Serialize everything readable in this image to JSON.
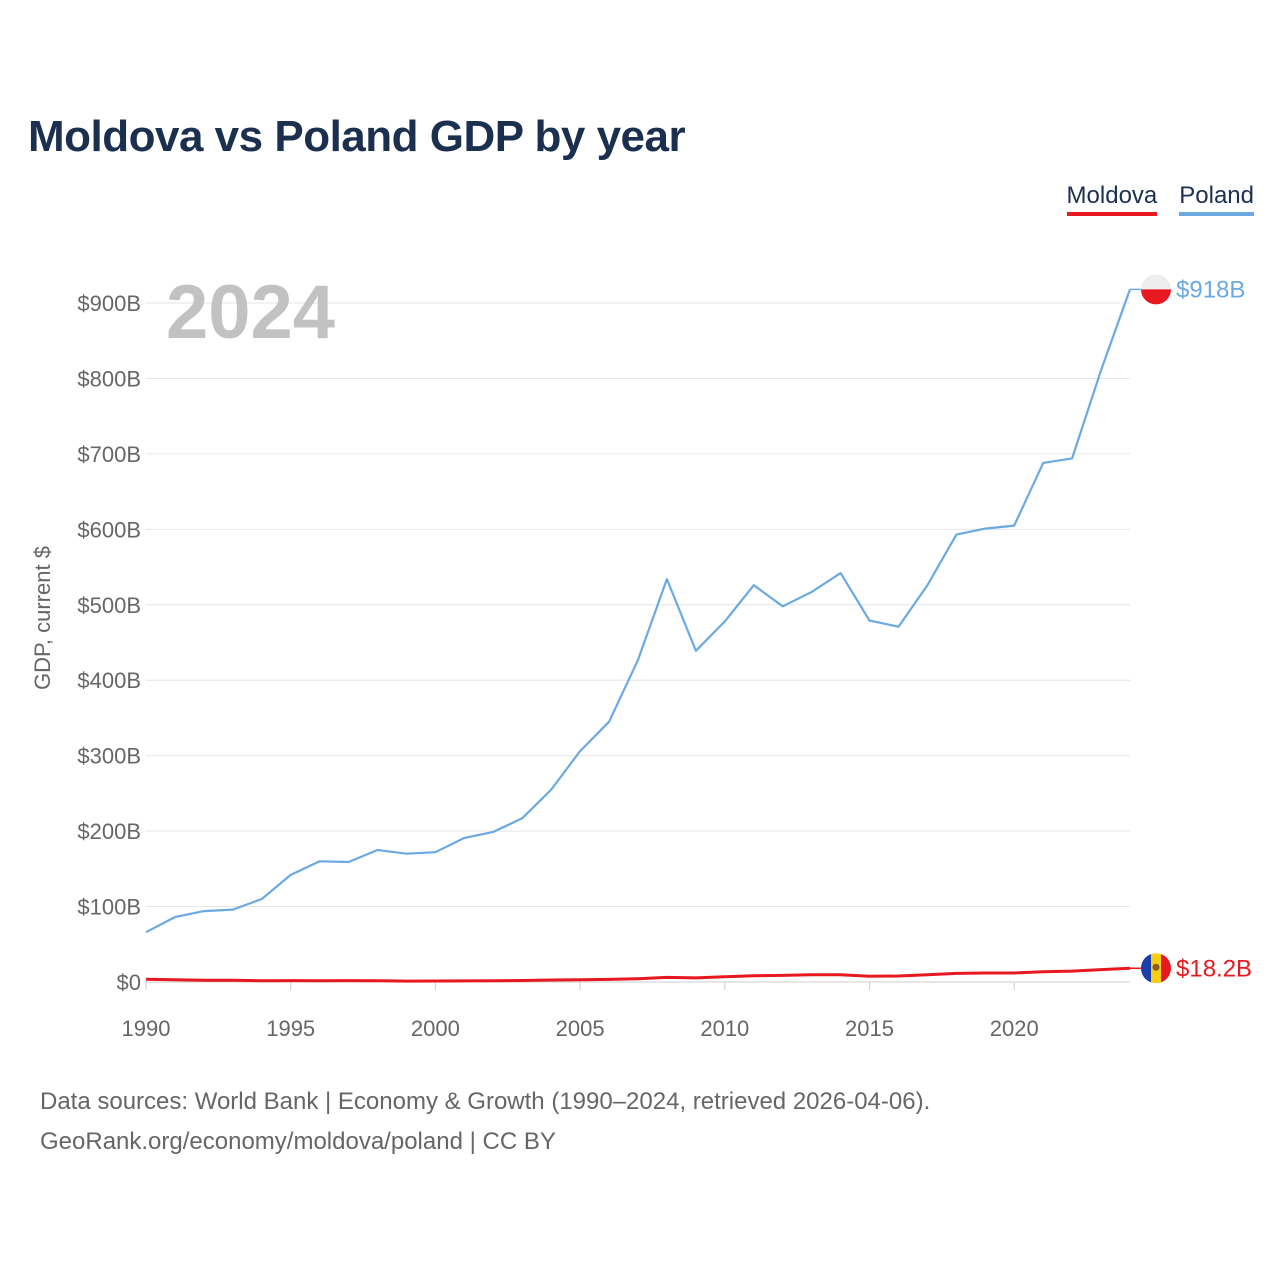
{
  "title": "Moldova vs Poland GDP by year",
  "legend": [
    {
      "name": "Moldova",
      "color": "#e8181f"
    },
    {
      "name": "Poland",
      "color": "#6aa9e4"
    }
  ],
  "year_watermark": "2024",
  "source_line1": "Data sources: World Bank | Economy & Growth (1990–2024, retrieved 2026-04-06).",
  "source_line2": "GeoRank.org/economy/moldova/poland | CC BY",
  "chart_data": {
    "type": "line",
    "title": "Moldova vs Poland GDP by year",
    "xlabel": "",
    "ylabel": "GDP, current $",
    "x": [
      1990,
      1991,
      1992,
      1993,
      1994,
      1995,
      1996,
      1997,
      1998,
      1999,
      2000,
      2001,
      2002,
      2003,
      2004,
      2005,
      2006,
      2007,
      2008,
      2009,
      2010,
      2011,
      2012,
      2013,
      2014,
      2015,
      2016,
      2017,
      2018,
      2019,
      2020,
      2021,
      2022,
      2023,
      2024
    ],
    "xlim": [
      1990,
      2024
    ],
    "ylim": [
      0,
      900
    ],
    "x_ticks": [
      1990,
      1995,
      2000,
      2005,
      2010,
      2015,
      2020
    ],
    "x_tick_labels": [
      "1990",
      "1995",
      "2000",
      "2005",
      "2010",
      "2015",
      "2020"
    ],
    "y_ticks": [
      0,
      100,
      200,
      300,
      400,
      500,
      600,
      700,
      800,
      900
    ],
    "y_tick_labels": [
      "$0",
      "$100B",
      "$200B",
      "$300B",
      "$400B",
      "$500B",
      "$600B",
      "$700B",
      "$800B",
      "$900B"
    ],
    "grid": true,
    "units": "billion USD",
    "series": [
      {
        "name": "Moldova",
        "color": "#e8181f",
        "end_label": "$18.2B",
        "values": [
          3.6,
          3.1,
          2.3,
          2.2,
          1.7,
          1.8,
          1.7,
          1.9,
          1.7,
          1.2,
          1.3,
          1.5,
          1.7,
          2.0,
          2.6,
          3.0,
          3.4,
          4.4,
          6.1,
          5.4,
          7.0,
          8.4,
          8.7,
          9.5,
          9.5,
          7.7,
          8.0,
          9.7,
          11.4,
          11.9,
          11.9,
          13.7,
          14.5,
          16.5,
          18.2
        ]
      },
      {
        "name": "Poland",
        "color": "#6aa9e4",
        "end_label": "$918B",
        "values": [
          66,
          86,
          94,
          96,
          110,
          142,
          160,
          159,
          175,
          170,
          172,
          191,
          199,
          217,
          255,
          306,
          345,
          427,
          534,
          439,
          478,
          526,
          498,
          517,
          542,
          479,
          471,
          526,
          593,
          601,
          605,
          688,
          694,
          811,
          918
        ]
      }
    ]
  }
}
